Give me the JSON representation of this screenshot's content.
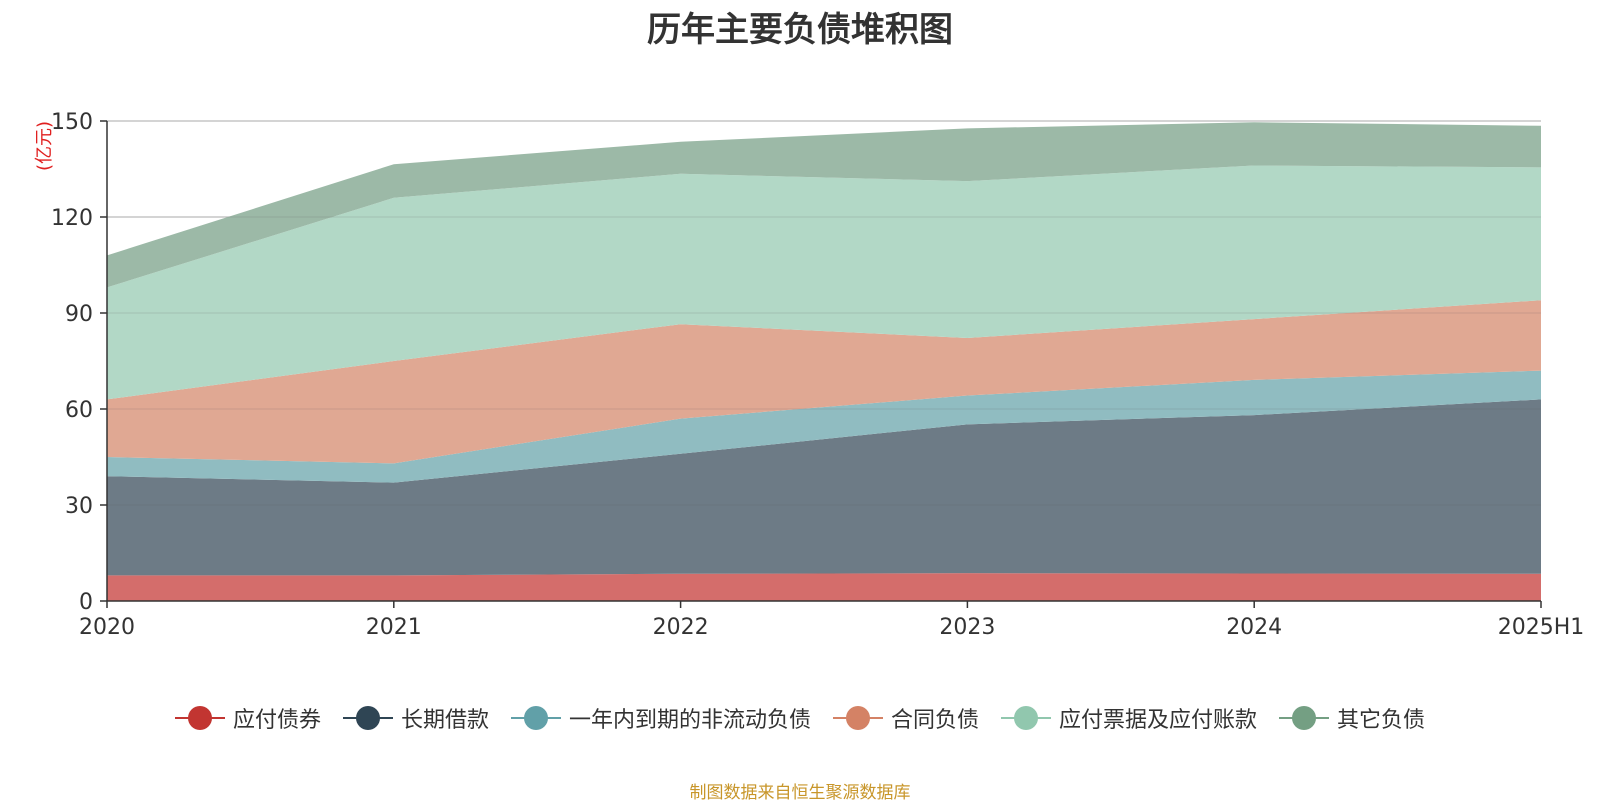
{
  "chart_data": {
    "type": "area",
    "stacked": true,
    "title": "历年主要负债堆积图",
    "unit_label": "(亿元)",
    "x": [
      "2020",
      "2021",
      "2022",
      "2023",
      "2024",
      "2025H1"
    ],
    "y_ticks": [
      "0",
      "30",
      "60",
      "90",
      "120",
      "150"
    ],
    "ylim": [
      0,
      150
    ],
    "grid": true,
    "legend_position": "bottom",
    "series": [
      {
        "name": "应付债券",
        "color": "#c23531",
        "area_color": "#d46d6b",
        "values": [
          8,
          8,
          8.5,
          8.7,
          8.6,
          8.5
        ]
      },
      {
        "name": "长期借款",
        "color": "#2f4554",
        "area_color": "#6d7b86",
        "values": [
          31,
          29,
          37.5,
          46.5,
          49.5,
          54.5
        ]
      },
      {
        "name": "一年内到期的非流动负债",
        "color": "#61a0a8",
        "area_color": "#90bcc1",
        "values": [
          6,
          6,
          11,
          9,
          11,
          9
        ]
      },
      {
        "name": "合同负债",
        "color": "#d48265",
        "area_color": "#e0a893",
        "values": [
          18,
          32,
          29.5,
          18,
          19,
          22
        ]
      },
      {
        "name": "应付票据及应付账款",
        "color": "#91c7ae",
        "area_color": "#b2d8c6",
        "values": [
          35,
          51,
          47,
          49,
          48,
          41.5
        ]
      },
      {
        "name": "其它负债",
        "color": "#749f83",
        "area_color": "#9cb9a7",
        "values": [
          10,
          10.5,
          10,
          16.5,
          13.5,
          13
        ]
      }
    ]
  },
  "footer": {
    "source": "制图数据来自恒生聚源数据库"
  }
}
